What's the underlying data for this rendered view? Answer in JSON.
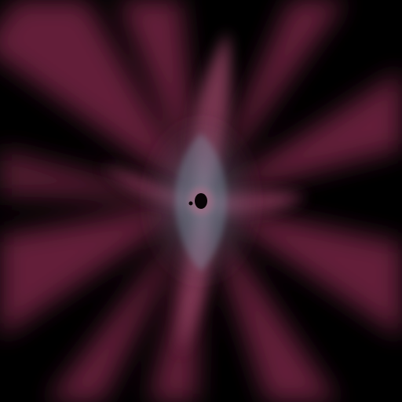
{
  "artwork": {
    "subject": "abstract-radial-light-burst",
    "colors": {
      "background": "#000000",
      "ray_outer": "#6e2440",
      "ray_mid": "#8a3e5c",
      "glow_inner": "#8aa6b4",
      "core": "#0a0306",
      "core_ring": "#b06a86"
    }
  }
}
